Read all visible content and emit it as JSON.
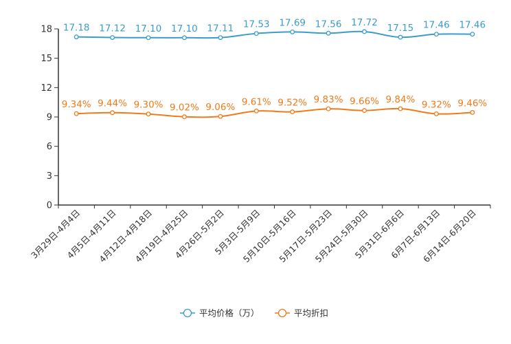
{
  "chart_data": {
    "type": "line",
    "categories": [
      "3月29日-4月4日",
      "4月5日-4月11日",
      "4月12日-4月18日",
      "4月19日-4月25日",
      "4月26日-5月2日",
      "5月3日-5月9日",
      "5月10日-5月16日",
      "5月17日-5月23日",
      "5月24日-5月30日",
      "5月31日-6月6日",
      "6月7日-6月13日",
      "6月14日-6月20日"
    ],
    "yticks": [
      0,
      3,
      6,
      9,
      12,
      15,
      18
    ],
    "ylim": [
      0,
      18
    ],
    "grid": false,
    "legend_position": "bottom",
    "series": [
      {
        "name": "平均价格（万）",
        "color": "#3a9ccc",
        "values": [
          17.18,
          17.12,
          17.1,
          17.1,
          17.11,
          17.53,
          17.69,
          17.56,
          17.72,
          17.15,
          17.46,
          17.46
        ],
        "labels": [
          "17.18",
          "17.12",
          "17.10",
          "17.10",
          "17.11",
          "17.53",
          "17.69",
          "17.56",
          "17.72",
          "17.15",
          "17.46",
          "17.46"
        ]
      },
      {
        "name": "平均折扣",
        "color": "#f07a1a",
        "values": [
          9.34,
          9.44,
          9.3,
          9.02,
          9.06,
          9.61,
          9.52,
          9.83,
          9.66,
          9.84,
          9.32,
          9.46
        ],
        "labels": [
          "9.34%",
          "9.44%",
          "9.30%",
          "9.02%",
          "9.06%",
          "9.61%",
          "9.52%",
          "9.83%",
          "9.66%",
          "9.84%",
          "9.32%",
          "9.46%"
        ]
      }
    ]
  }
}
